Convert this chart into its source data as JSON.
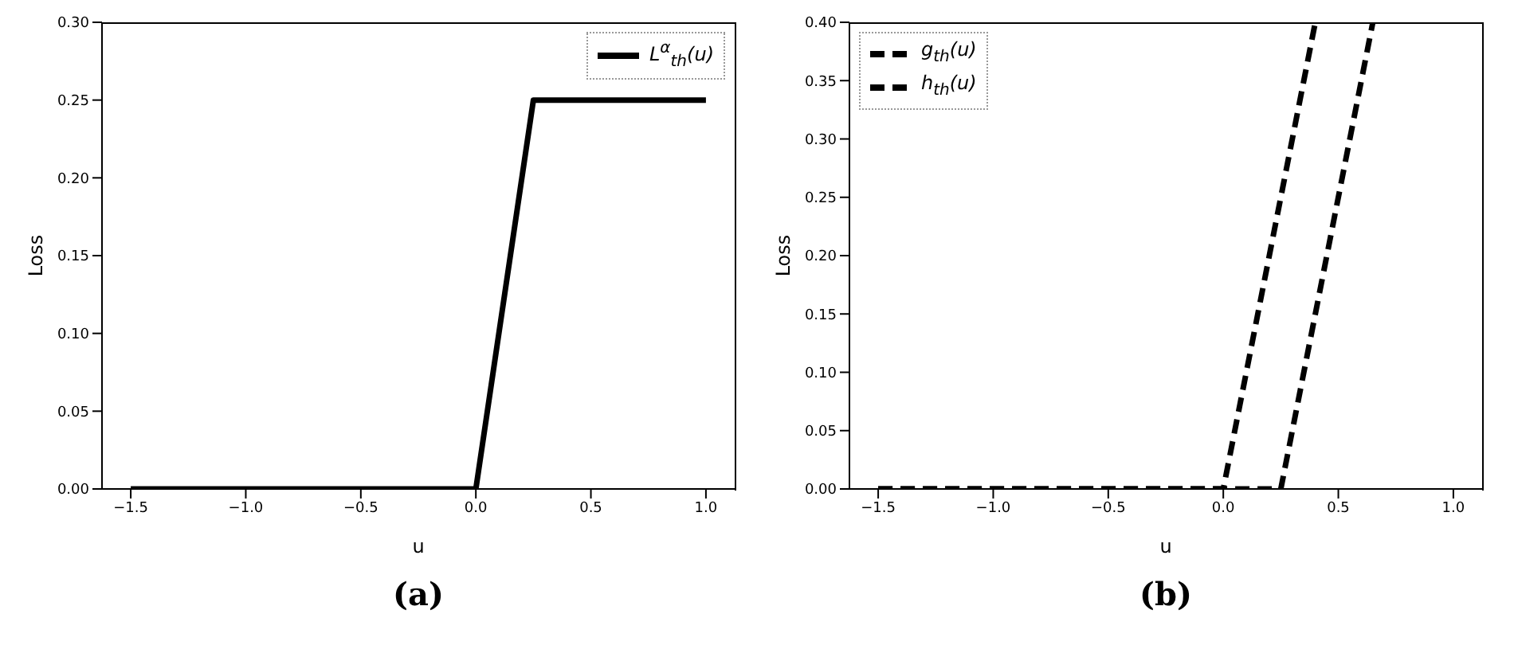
{
  "chart_data": [
    {
      "type": "line",
      "xlabel": "u",
      "ylabel": "Loss",
      "annotations": [
        "(a)"
      ],
      "legend": "top right",
      "line_style": "solid",
      "marker": "none",
      "xlim": [
        -1.625,
        1.125
      ],
      "xticks": [
        {
          "value": -1.5,
          "label": "−1.5"
        },
        {
          "value": -1.0,
          "label": "−1.0"
        },
        {
          "value": -0.5,
          "label": "−0.5"
        },
        {
          "value": 0,
          "label": "0.0"
        },
        {
          "value": 0.5,
          "label": "0.5"
        },
        {
          "value": 1.0,
          "label": "1.0"
        }
      ],
      "ylim": [
        0,
        0.3
      ],
      "yticks": [
        {
          "value": 0,
          "label": "0.00"
        },
        {
          "value": 0.05,
          "label": "0.05"
        },
        {
          "value": 0.1,
          "label": "0.10"
        },
        {
          "value": 0.15,
          "label": "0.15"
        },
        {
          "value": 0.2,
          "label": "0.20"
        },
        {
          "value": 0.25,
          "label": "0.25"
        },
        {
          "value": 0.3,
          "label": "0.30"
        }
      ],
      "series": [
        {
          "name": "L$^{α}$$_{th}$(u)",
          "color": "#000000",
          "x": [
            -1.5,
            0,
            0.25,
            1.0
          ],
          "values": [
            0,
            0,
            0.25,
            0.25
          ]
        }
      ]
    },
    {
      "type": "line",
      "xlabel": "u",
      "ylabel": "Loss",
      "annotations": [
        "(b)"
      ],
      "legend": "top left",
      "line_style": "dashed",
      "marker": "none",
      "xlim": [
        -1.625,
        1.125
      ],
      "xticks": [
        {
          "value": -1.5,
          "label": "−1.5"
        },
        {
          "value": -1.0,
          "label": "−1.0"
        },
        {
          "value": -0.5,
          "label": "−0.5"
        },
        {
          "value": 0,
          "label": "0.0"
        },
        {
          "value": 0.5,
          "label": "0.5"
        },
        {
          "value": 1.0,
          "label": "1.0"
        }
      ],
      "ylim": [
        0,
        0.4
      ],
      "yticks": [
        {
          "value": 0,
          "label": "0.00"
        },
        {
          "value": 0.05,
          "label": "0.05"
        },
        {
          "value": 0.1,
          "label": "0.10"
        },
        {
          "value": 0.15,
          "label": "0.15"
        },
        {
          "value": 0.2,
          "label": "0.20"
        },
        {
          "value": 0.25,
          "label": "0.25"
        },
        {
          "value": 0.3,
          "label": "0.30"
        },
        {
          "value": 0.35,
          "label": "0.35"
        },
        {
          "value": 0.4,
          "label": "0.40"
        }
      ],
      "series": [
        {
          "name": "g$_{th}$(u)",
          "color": "#000000",
          "x": [
            -1.5,
            0,
            0.4
          ],
          "values": [
            0,
            0,
            0.4
          ]
        },
        {
          "name": "h$_{th}$(u)",
          "color": "#000000",
          "x": [
            -1.5,
            0.25,
            0.65
          ],
          "values": [
            0,
            0,
            0.4
          ]
        }
      ]
    }
  ]
}
